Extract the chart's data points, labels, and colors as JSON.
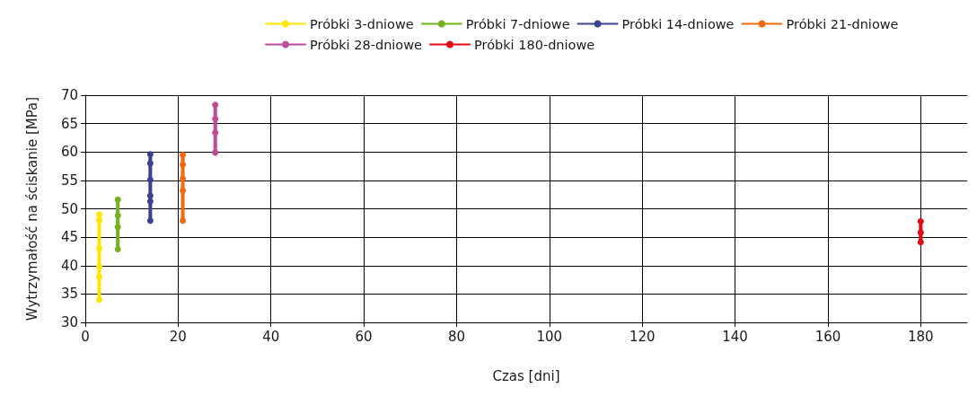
{
  "chart_data": {
    "type": "line",
    "xlabel": "Czas [dni]",
    "ylabel": "Wytrzymałość na ściskanie [MPa]",
    "xlim": [
      0,
      190
    ],
    "xticks": [
      0,
      20,
      40,
      60,
      80,
      100,
      120,
      140,
      160,
      180
    ],
    "ylim": [
      30,
      70
    ],
    "yticks": [
      30,
      35,
      40,
      45,
      50,
      55,
      60,
      65,
      70
    ],
    "grid": true,
    "legend": "top",
    "marker": "circle",
    "line_style": "solid",
    "series": [
      {
        "name": "Próbki 3-dniowe",
        "color": "#ffe600",
        "x": [
          3,
          3,
          3,
          3,
          3,
          3
        ],
        "values": [
          49,
          48,
          43,
          39.8,
          38,
          34
        ]
      },
      {
        "name": "Próbki 7-dniowe",
        "color": "#72b21b",
        "x": [
          7,
          7,
          7,
          7
        ],
        "values": [
          51.6,
          48.8,
          46.8,
          42.9
        ]
      },
      {
        "name": "Próbki 14-dniowe",
        "color": "#3a4193",
        "x": [
          14,
          14,
          14,
          14,
          14,
          14
        ],
        "values": [
          59.6,
          58,
          55.1,
          52.3,
          51.3,
          47.9
        ]
      },
      {
        "name": "Próbki 21-dniowe",
        "color": "#f26a0c",
        "x": [
          21,
          21,
          21,
          21,
          21
        ],
        "values": [
          59.5,
          57.8,
          55.3,
          53.2,
          47.9
        ]
      },
      {
        "name": "Próbki 28-dniowe",
        "color": "#bf4a97",
        "x": [
          28,
          28,
          28,
          28
        ],
        "values": [
          68.3,
          65.8,
          63.4,
          59.9
        ]
      },
      {
        "name": "Próbki 180-dniowe",
        "color": "#e30613",
        "x": [
          180,
          180,
          180
        ],
        "values": [
          47.8,
          45.8,
          44.1
        ]
      }
    ]
  }
}
